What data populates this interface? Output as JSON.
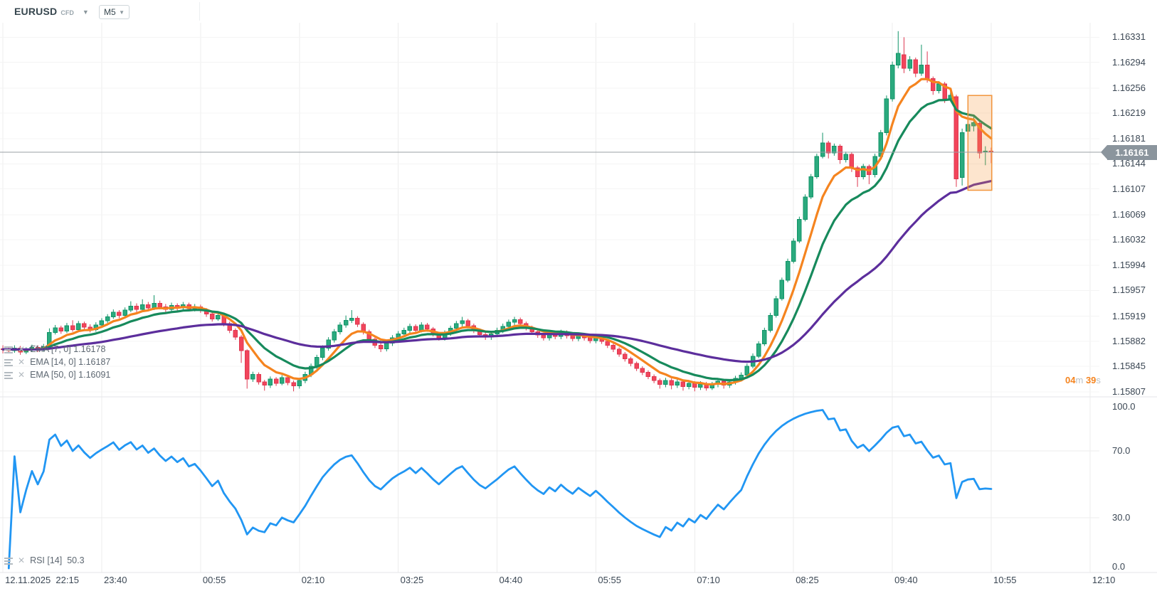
{
  "header": {
    "symbol": "EURUSD",
    "symbol_type": "CFD",
    "timeframe": "M5"
  },
  "price_pane": {
    "indicators_legend": [
      {
        "label": "EMA [7, 0]",
        "value": "1.16178"
      },
      {
        "label": "EMA [14, 0]",
        "value": "1.16187"
      },
      {
        "label": "EMA [50, 0]",
        "value": "1.16091"
      }
    ],
    "current_price": "1.16161",
    "countdown": {
      "minutes": "04",
      "m_unit": "m",
      "seconds": "39",
      "s_unit": "s"
    }
  },
  "rsi_pane": {
    "legend": {
      "label": "RSI [14]",
      "value": "50.3"
    },
    "axis_labels": [
      100.0,
      70.0,
      30.0,
      0.0
    ]
  },
  "chart_data": {
    "type": "candlestick",
    "symbol": "EURUSD CFD",
    "timeframe": "M5",
    "price_base": 1.15,
    "price_unit": 1e-05,
    "price_axis_ticks": [
      1.16331,
      1.16294,
      1.16256,
      1.16219,
      1.16181,
      1.16144,
      1.16107,
      1.16069,
      1.16032,
      1.15994,
      1.15957,
      1.15919,
      1.15882,
      1.15845,
      1.15807
    ],
    "current_price": 1.16161,
    "time_labels": [
      {
        "index": 0,
        "label": "12.11.2025  22:15"
      },
      {
        "index": 17,
        "label": "23:40"
      },
      {
        "index": 34,
        "label": "00:55"
      },
      {
        "index": 51,
        "label": "02:10"
      },
      {
        "index": 68,
        "label": "03:25"
      },
      {
        "index": 85,
        "label": "04:40"
      },
      {
        "index": 102,
        "label": "05:55"
      },
      {
        "index": 119,
        "label": "07:10"
      },
      {
        "index": 136,
        "label": "08:25"
      },
      {
        "index": 153,
        "label": "09:40"
      },
      {
        "index": 170,
        "label": "10:55"
      },
      {
        "index": 187,
        "label": "12:10"
      }
    ],
    "indicators": [
      {
        "type": "EMA",
        "period": 7,
        "offset": 0,
        "color": "#f5841f",
        "pane": "price",
        "width": 3.2
      },
      {
        "type": "EMA",
        "period": 14,
        "offset": 0,
        "color": "#178a5c",
        "pane": "price",
        "width": 3.2
      },
      {
        "type": "EMA",
        "period": 50,
        "offset": 0,
        "color": "#5c2e9c",
        "pane": "price",
        "width": 3.2
      },
      {
        "type": "RSI",
        "period": 14,
        "color": "#2196f3",
        "pane": "rsi",
        "width": 2.8
      }
    ],
    "rsi_axis": {
      "max": 100.0,
      "upper": 70.0,
      "lower": 30.0,
      "min": 0.0
    },
    "highlight_zone": {
      "from_index": 166.5,
      "to_index": 170.6,
      "price_top": 1.16245,
      "price_bottom": 1.16105,
      "border_color": "#f2953c",
      "fill_color": "rgba(246,151,60,0.25)"
    },
    "colors": {
      "up": "#2baa7e",
      "up_border": "#119468",
      "down": "#f2455b",
      "down_border": "#de3850",
      "grid_v": "#ececec",
      "grid_h": "#f4f4f4",
      "divider": "#e4e6e8",
      "price_line": "#9aa0a6",
      "tag_bg": "#8b959d"
    },
    "candles_ohlc_pips": [
      [
        871,
        876,
        864,
        870
      ],
      [
        870,
        873,
        864,
        868
      ],
      [
        868,
        876,
        865,
        872
      ],
      [
        872,
        875,
        862,
        866
      ],
      [
        866,
        873,
        863,
        869
      ],
      [
        869,
        877,
        866,
        873
      ],
      [
        873,
        876,
        866,
        870
      ],
      [
        870,
        878,
        867,
        874
      ],
      [
        874,
        901,
        870,
        895
      ],
      [
        895,
        906,
        892,
        902
      ],
      [
        902,
        905,
        893,
        897
      ],
      [
        897,
        909,
        894,
        905
      ],
      [
        905,
        913,
        896,
        899
      ],
      [
        899,
        912,
        896,
        908
      ],
      [
        908,
        911,
        899,
        903
      ],
      [
        903,
        907,
        895,
        899
      ],
      [
        899,
        910,
        896,
        906
      ],
      [
        906,
        916,
        903,
        912
      ],
      [
        912,
        922,
        909,
        918
      ],
      [
        918,
        929,
        915,
        925
      ],
      [
        925,
        928,
        916,
        920
      ],
      [
        920,
        932,
        917,
        928
      ],
      [
        928,
        941,
        925,
        934
      ],
      [
        934,
        938,
        925,
        929
      ],
      [
        929,
        944,
        926,
        936
      ],
      [
        936,
        940,
        927,
        931
      ],
      [
        931,
        950,
        928,
        938
      ],
      [
        938,
        942,
        929,
        933
      ],
      [
        933,
        937,
        925,
        929
      ],
      [
        929,
        939,
        926,
        935
      ],
      [
        935,
        938,
        927,
        931
      ],
      [
        931,
        940,
        928,
        936
      ],
      [
        936,
        939,
        926,
        930
      ],
      [
        930,
        937,
        926,
        933
      ],
      [
        933,
        936,
        924,
        928
      ],
      [
        928,
        931,
        918,
        922
      ],
      [
        922,
        926,
        911,
        915
      ],
      [
        915,
        924,
        912,
        920
      ],
      [
        920,
        923,
        904,
        908
      ],
      [
        908,
        911,
        894,
        898
      ],
      [
        898,
        901,
        884,
        888
      ],
      [
        888,
        891,
        850,
        868
      ],
      [
        868,
        870,
        812,
        826
      ],
      [
        826,
        837,
        822,
        833
      ],
      [
        833,
        836,
        818,
        822
      ],
      [
        822,
        825,
        809,
        817
      ],
      [
        817,
        830,
        813,
        826
      ],
      [
        826,
        829,
        816,
        820
      ],
      [
        820,
        832,
        817,
        828
      ],
      [
        828,
        831,
        817,
        821
      ],
      [
        821,
        824,
        808,
        816
      ],
      [
        816,
        828,
        812,
        824
      ],
      [
        824,
        837,
        820,
        833
      ],
      [
        833,
        849,
        829,
        845
      ],
      [
        845,
        862,
        841,
        858
      ],
      [
        858,
        876,
        854,
        872
      ],
      [
        872,
        888,
        868,
        884
      ],
      [
        884,
        900,
        880,
        896
      ],
      [
        896,
        910,
        892,
        906
      ],
      [
        906,
        920,
        902,
        913
      ],
      [
        913,
        928,
        909,
        916
      ],
      [
        916,
        919,
        903,
        907
      ],
      [
        907,
        910,
        892,
        896
      ],
      [
        896,
        899,
        881,
        885
      ],
      [
        885,
        888,
        872,
        876
      ],
      [
        876,
        880,
        866,
        871
      ],
      [
        871,
        883,
        867,
        879
      ],
      [
        879,
        891,
        875,
        887
      ],
      [
        887,
        897,
        883,
        893
      ],
      [
        893,
        902,
        889,
        898
      ],
      [
        898,
        908,
        894,
        904
      ],
      [
        904,
        907,
        894,
        898
      ],
      [
        898,
        910,
        895,
        906
      ],
      [
        906,
        909,
        896,
        900
      ],
      [
        900,
        903,
        889,
        893
      ],
      [
        893,
        896,
        883,
        887
      ],
      [
        887,
        898,
        883,
        894
      ],
      [
        894,
        905,
        890,
        901
      ],
      [
        901,
        912,
        897,
        908
      ],
      [
        908,
        918,
        904,
        912
      ],
      [
        912,
        915,
        901,
        905
      ],
      [
        905,
        908,
        894,
        898
      ],
      [
        898,
        901,
        888,
        892
      ],
      [
        892,
        895,
        884,
        888
      ],
      [
        888,
        897,
        884,
        893
      ],
      [
        893,
        902,
        889,
        898
      ],
      [
        898,
        908,
        894,
        904
      ],
      [
        904,
        914,
        900,
        910
      ],
      [
        910,
        918,
        906,
        914
      ],
      [
        914,
        917,
        904,
        908
      ],
      [
        908,
        911,
        898,
        902
      ],
      [
        902,
        905,
        892,
        896
      ],
      [
        896,
        899,
        887,
        891
      ],
      [
        891,
        894,
        883,
        887
      ],
      [
        887,
        897,
        883,
        893
      ],
      [
        893,
        896,
        885,
        889
      ],
      [
        889,
        899,
        885,
        895
      ],
      [
        895,
        898,
        886,
        890
      ],
      [
        890,
        893,
        882,
        886
      ],
      [
        886,
        895,
        882,
        891
      ],
      [
        891,
        894,
        883,
        887
      ],
      [
        887,
        890,
        879,
        883
      ],
      [
        883,
        891,
        879,
        887
      ],
      [
        887,
        890,
        878,
        882
      ],
      [
        882,
        885,
        872,
        876
      ],
      [
        876,
        879,
        866,
        870
      ],
      [
        870,
        873,
        859,
        863
      ],
      [
        863,
        866,
        852,
        856
      ],
      [
        856,
        859,
        845,
        849
      ],
      [
        849,
        852,
        838,
        842
      ],
      [
        842,
        845,
        832,
        836
      ],
      [
        836,
        839,
        826,
        830
      ],
      [
        830,
        833,
        820,
        824
      ],
      [
        824,
        827,
        812,
        818
      ],
      [
        818,
        828,
        814,
        824
      ],
      [
        824,
        827,
        811,
        817
      ],
      [
        817,
        826,
        813,
        822
      ],
      [
        822,
        825,
        809,
        815
      ],
      [
        815,
        824,
        811,
        820
      ],
      [
        820,
        823,
        808,
        814
      ],
      [
        814,
        823,
        810,
        819
      ],
      [
        819,
        822,
        809,
        813
      ],
      [
        813,
        822,
        810,
        818
      ],
      [
        818,
        827,
        814,
        823
      ],
      [
        823,
        826,
        812,
        817
      ],
      [
        817,
        826,
        813,
        822
      ],
      [
        822,
        831,
        818,
        827
      ],
      [
        827,
        836,
        823,
        832
      ],
      [
        832,
        849,
        829,
        845
      ],
      [
        845,
        864,
        842,
        860
      ],
      [
        860,
        882,
        857,
        878
      ],
      [
        878,
        902,
        875,
        898
      ],
      [
        898,
        924,
        895,
        920
      ],
      [
        920,
        949,
        917,
        945
      ],
      [
        945,
        976,
        942,
        972
      ],
      [
        972,
        1004,
        969,
        1000
      ],
      [
        1000,
        1034,
        997,
        1030
      ],
      [
        1030,
        1066,
        1027,
        1062
      ],
      [
        1062,
        1099,
        1059,
        1095
      ],
      [
        1095,
        1129,
        1092,
        1125
      ],
      [
        1125,
        1159,
        1122,
        1155
      ],
      [
        1155,
        1190,
        1152,
        1175
      ],
      [
        1175,
        1178,
        1152,
        1160
      ],
      [
        1160,
        1174,
        1156,
        1170
      ],
      [
        1170,
        1173,
        1144,
        1150
      ],
      [
        1150,
        1162,
        1146,
        1158
      ],
      [
        1158,
        1161,
        1132,
        1138
      ],
      [
        1138,
        1141,
        1110,
        1125
      ],
      [
        1125,
        1144,
        1121,
        1140
      ],
      [
        1140,
        1143,
        1114,
        1128
      ],
      [
        1128,
        1159,
        1124,
        1155
      ],
      [
        1155,
        1194,
        1151,
        1190
      ],
      [
        1190,
        1245,
        1186,
        1240
      ],
      [
        1240,
        1295,
        1236,
        1290
      ],
      [
        1290,
        1340,
        1285,
        1307
      ],
      [
        1305,
        1331,
        1278,
        1285
      ],
      [
        1285,
        1303,
        1281,
        1298
      ],
      [
        1298,
        1301,
        1272,
        1278
      ],
      [
        1278,
        1320,
        1274,
        1290
      ],
      [
        1290,
        1310,
        1264,
        1270
      ],
      [
        1270,
        1273,
        1246,
        1252
      ],
      [
        1252,
        1266,
        1248,
        1262
      ],
      [
        1262,
        1265,
        1234,
        1240
      ],
      [
        1240,
        1251,
        1236,
        1245
      ],
      [
        1243,
        1246,
        1110,
        1122
      ],
      [
        1124,
        1196,
        1112,
        1190
      ],
      [
        1192,
        1212,
        1186,
        1202
      ],
      [
        1200,
        1215,
        1192,
        1205
      ],
      [
        1204,
        1207,
        1152,
        1160
      ],
      [
        1162,
        1170,
        1142,
        1163
      ],
      [
        1163,
        1168,
        1145,
        1161
      ]
    ]
  }
}
